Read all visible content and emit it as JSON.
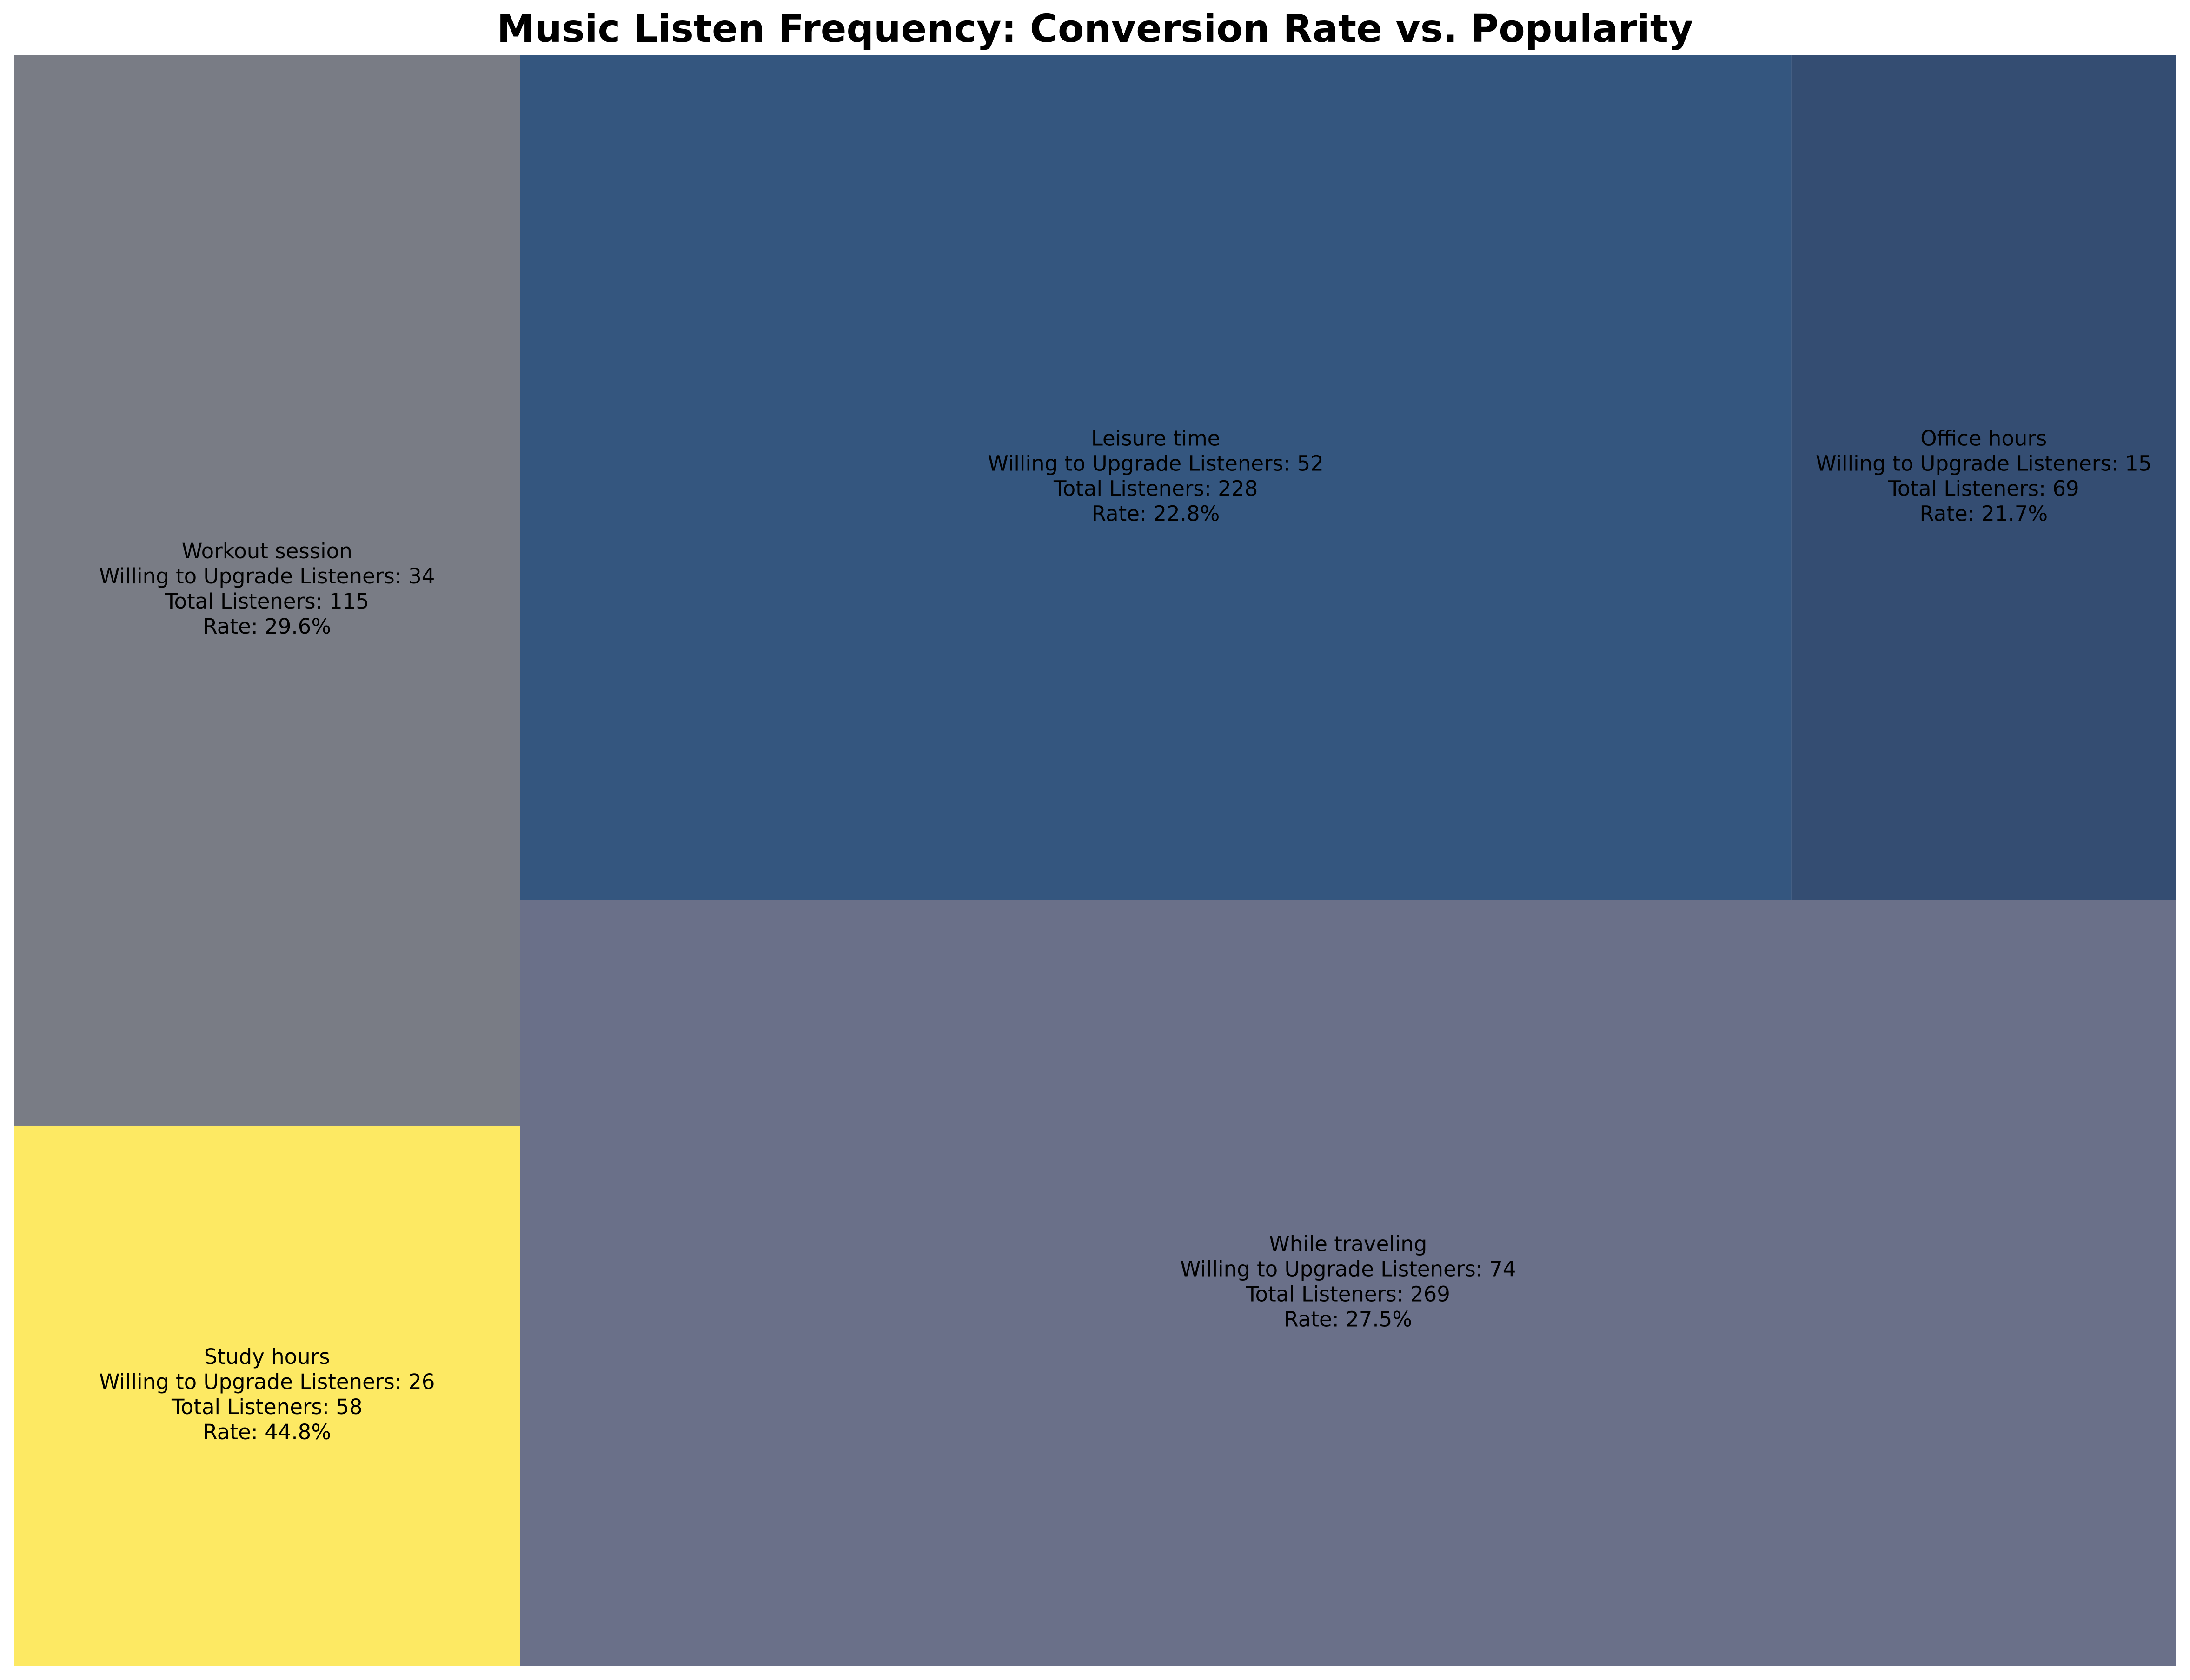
{
  "chart_data": {
    "type": "treemap",
    "title": "Music Listen Frequency: Conversion Rate vs. Popularity",
    "items": [
      {
        "name": "Workout session",
        "willing": 34,
        "total": 115,
        "rate": 29.6,
        "color": "#797c85",
        "line_willing": "Willing to Upgrade Listeners: 34",
        "line_total": "Total Listeners: 115",
        "line_rate": "Rate: 29.6%"
      },
      {
        "name": "Study hours",
        "willing": 26,
        "total": 58,
        "rate": 44.8,
        "color": "#fde963",
        "line_willing": "Willing to Upgrade Listeners: 26",
        "line_total": "Total Listeners: 58",
        "line_rate": "Rate: 44.8%"
      },
      {
        "name": "Leisure time",
        "willing": 52,
        "total": 228,
        "rate": 22.8,
        "color": "#34567f",
        "line_willing": "Willing to Upgrade Listeners: 52",
        "line_total": "Total Listeners: 228",
        "line_rate": "Rate: 22.8%"
      },
      {
        "name": "Office hours",
        "willing": 15,
        "total": 69,
        "rate": 21.7,
        "color": "#344d72",
        "line_willing": "Willing to Upgrade Listeners: 15",
        "line_total": "Total Listeners: 69",
        "line_rate": "Rate: 21.7%"
      },
      {
        "name": "While traveling",
        "willing": 74,
        "total": 269,
        "rate": 27.5,
        "color": "#6a7089",
        "line_willing": "Willing to Upgrade Listeners: 74",
        "line_total": "Total Listeners: 269",
        "line_rate": "Rate: 27.5%"
      }
    ]
  }
}
